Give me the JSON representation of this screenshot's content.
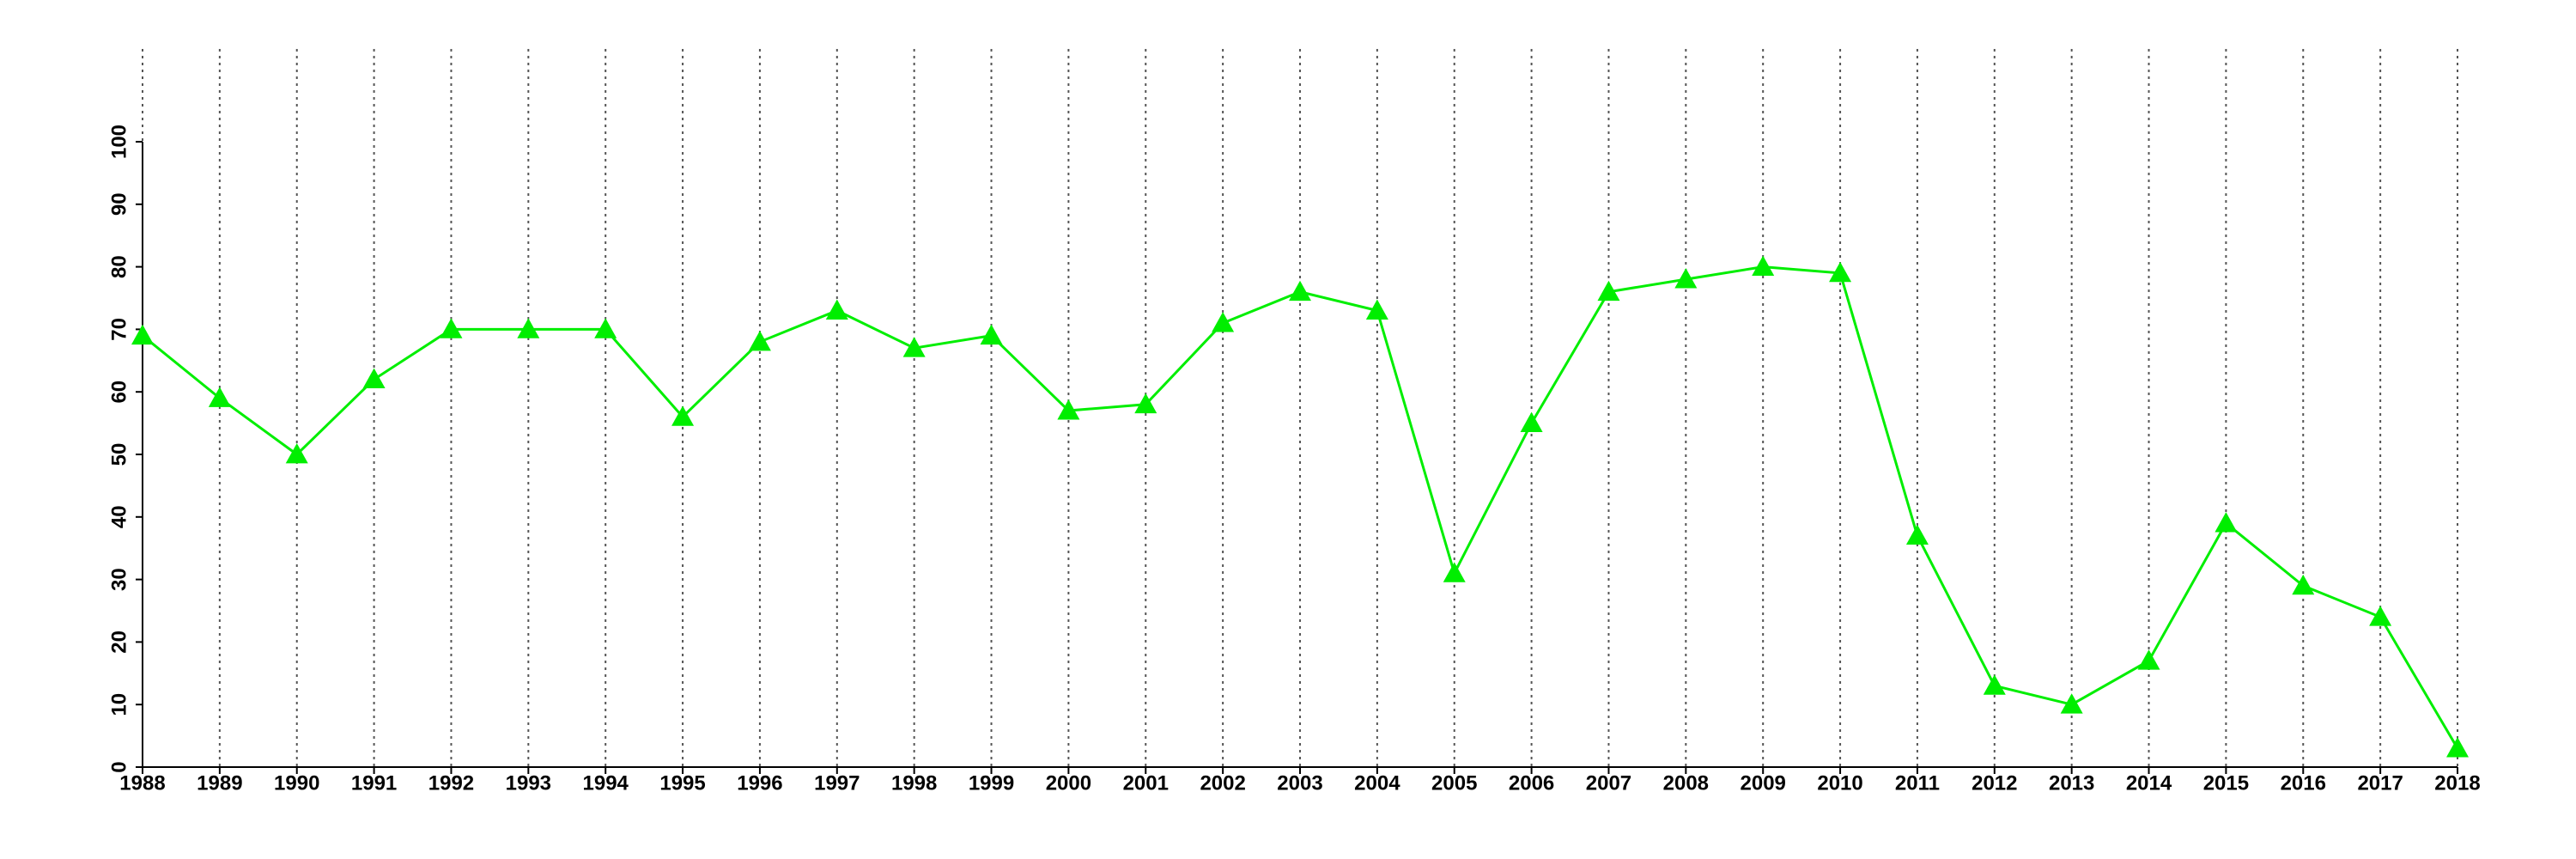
{
  "chart_data": {
    "type": "line",
    "x": [
      1988,
      1989,
      1990,
      1991,
      1992,
      1993,
      1994,
      1995,
      1996,
      1997,
      1998,
      1999,
      2000,
      2001,
      2002,
      2003,
      2004,
      2005,
      2006,
      2007,
      2008,
      2009,
      2010,
      2011,
      2012,
      2013,
      2014,
      2015,
      2016,
      2017,
      2018
    ],
    "values": [
      69,
      59,
      50,
      62,
      70,
      70,
      70,
      56,
      68,
      73,
      67,
      69,
      57,
      58,
      71,
      76,
      73,
      31,
      55,
      76,
      78,
      80,
      79,
      37,
      13,
      10,
      17,
      39,
      29,
      24,
      3
    ],
    "color": "#00ee00",
    "xlim": [
      1988,
      2018
    ],
    "xticks": [
      1988,
      1989,
      1990,
      1991,
      1992,
      1993,
      1994,
      1995,
      1996,
      1997,
      1998,
      1999,
      2000,
      2001,
      2002,
      2003,
      2004,
      2005,
      2006,
      2007,
      2008,
      2009,
      2010,
      2011,
      2012,
      2013,
      2014,
      2015,
      2016,
      2017,
      2018
    ],
    "ylim": [
      0,
      100
    ],
    "yticks": [
      0,
      10,
      20,
      30,
      40,
      50,
      60,
      70,
      80,
      90,
      100
    ],
    "grid": "x",
    "marker": "triangle"
  }
}
